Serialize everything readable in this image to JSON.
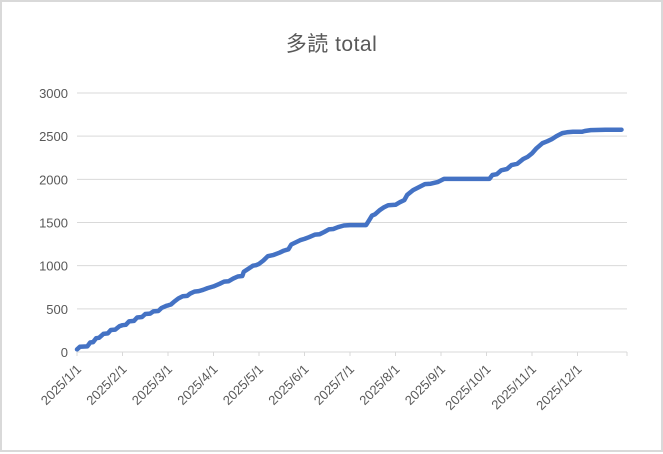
{
  "chart_data": {
    "type": "line",
    "title": "多読 total",
    "legend": "none",
    "grid": "horizontal-only",
    "x_axis": {
      "kind": "date",
      "tick_labels": [
        "2025/1/1",
        "2025/2/1",
        "2025/3/1",
        "2025/4/1",
        "2025/5/1",
        "2025/6/1",
        "2025/7/1",
        "2025/8/1",
        "2025/9/1",
        "2025/10/1",
        "2025/11/1",
        "2025/12/1"
      ],
      "label_rotation_deg": -45,
      "range": [
        "2025/1/1",
        "2025/12/31"
      ]
    },
    "y_axis": {
      "ticks": [
        0,
        500,
        1000,
        1500,
        2000,
        2500,
        3000
      ],
      "ylim": [
        0,
        3000
      ]
    },
    "series": [
      {
        "name": "多読 total",
        "color": "#4472C4",
        "points": [
          [
            "1/1",
            30
          ],
          [
            "1/3",
            60
          ],
          [
            "1/8",
            65
          ],
          [
            "1/10",
            110
          ],
          [
            "1/12",
            115
          ],
          [
            "1/14",
            160
          ],
          [
            "1/16",
            165
          ],
          [
            "1/19",
            210
          ],
          [
            "1/22",
            215
          ],
          [
            "1/24",
            255
          ],
          [
            "1/27",
            260
          ],
          [
            "1/30",
            300
          ],
          [
            "2/1",
            310
          ],
          [
            "2/3",
            315
          ],
          [
            "2/5",
            355
          ],
          [
            "2/8",
            360
          ],
          [
            "2/10",
            400
          ],
          [
            "2/13",
            405
          ],
          [
            "2/15",
            440
          ],
          [
            "2/18",
            445
          ],
          [
            "2/20",
            470
          ],
          [
            "2/23",
            475
          ],
          [
            "2/25",
            510
          ],
          [
            "2/28",
            535
          ],
          [
            "3/1",
            540
          ],
          [
            "3/3",
            550
          ],
          [
            "3/5",
            580
          ],
          [
            "3/8",
            620
          ],
          [
            "3/11",
            645
          ],
          [
            "3/14",
            650
          ],
          [
            "3/16",
            675
          ],
          [
            "3/19",
            700
          ],
          [
            "3/22",
            705
          ],
          [
            "3/25",
            720
          ],
          [
            "3/28",
            740
          ],
          [
            "4/1",
            760
          ],
          [
            "4/5",
            790
          ],
          [
            "4/8",
            815
          ],
          [
            "4/11",
            820
          ],
          [
            "4/14",
            850
          ],
          [
            "4/17",
            875
          ],
          [
            "4/20",
            880
          ],
          [
            "4/21",
            930
          ],
          [
            "4/24",
            965
          ],
          [
            "4/27",
            1000
          ],
          [
            "4/29",
            1005
          ],
          [
            "5/1",
            1020
          ],
          [
            "5/4",
            1060
          ],
          [
            "5/7",
            1110
          ],
          [
            "5/11",
            1125
          ],
          [
            "5/15",
            1150
          ],
          [
            "5/18",
            1175
          ],
          [
            "5/21",
            1190
          ],
          [
            "5/23",
            1245
          ],
          [
            "5/26",
            1270
          ],
          [
            "5/29",
            1295
          ],
          [
            "6/1",
            1310
          ],
          [
            "6/4",
            1330
          ],
          [
            "6/8",
            1360
          ],
          [
            "6/11",
            1365
          ],
          [
            "6/14",
            1390
          ],
          [
            "6/17",
            1420
          ],
          [
            "6/20",
            1425
          ],
          [
            "6/23",
            1445
          ],
          [
            "6/27",
            1465
          ],
          [
            "7/1",
            1470
          ],
          [
            "7/12",
            1470
          ],
          [
            "7/14",
            1525
          ],
          [
            "7/16",
            1580
          ],
          [
            "7/18",
            1595
          ],
          [
            "7/21",
            1640
          ],
          [
            "7/24",
            1675
          ],
          [
            "7/27",
            1700
          ],
          [
            "8/1",
            1705
          ],
          [
            "8/4",
            1735
          ],
          [
            "8/7",
            1760
          ],
          [
            "8/9",
            1820
          ],
          [
            "8/13",
            1875
          ],
          [
            "8/17",
            1910
          ],
          [
            "8/21",
            1945
          ],
          [
            "8/25",
            1950
          ],
          [
            "8/30",
            1970
          ],
          [
            "9/3",
            2005
          ],
          [
            "10/3",
            2005
          ],
          [
            "10/5",
            2050
          ],
          [
            "10/8",
            2060
          ],
          [
            "10/11",
            2105
          ],
          [
            "10/15",
            2120
          ],
          [
            "10/18",
            2165
          ],
          [
            "10/22",
            2180
          ],
          [
            "10/26",
            2235
          ],
          [
            "10/29",
            2260
          ],
          [
            "11/1",
            2300
          ],
          [
            "11/4",
            2360
          ],
          [
            "11/8",
            2420
          ],
          [
            "11/11",
            2440
          ],
          [
            "11/14",
            2465
          ],
          [
            "11/17",
            2500
          ],
          [
            "11/21",
            2535
          ],
          [
            "11/24",
            2545
          ],
          [
            "11/28",
            2550
          ],
          [
            "12/4",
            2550
          ],
          [
            "12/6",
            2560
          ],
          [
            "12/10",
            2570
          ],
          [
            "12/20",
            2575
          ],
          [
            "12/31",
            2575
          ]
        ]
      }
    ],
    "colors": {
      "line": "#4472C4",
      "grid": "#D9D9D9",
      "axis": "#D9D9D9",
      "text": "#595959",
      "border": "#D9D9D9",
      "background": "#FFFFFF"
    }
  }
}
